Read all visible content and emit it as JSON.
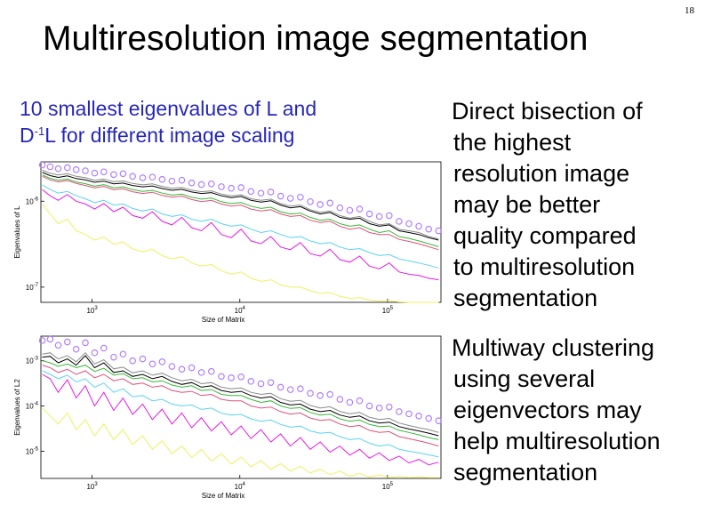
{
  "page_number": "18",
  "title": "Multiresolution image segmentation",
  "subtitle": {
    "line1": "10 smallest eigenvalues of L and",
    "line2_prefix": "D",
    "line2_sup": "-1",
    "line2_suffix": "L for different image scaling"
  },
  "bullets": [
    {
      "lines": [
        "Direct bisection of",
        "the highest",
        "resolution image",
        "may be better",
        "quality  compared",
        "to multiresolution",
        "segmentation"
      ]
    },
    {
      "lines": [
        "Multiway clustering",
        "using several",
        "eigenvectors may",
        "help multiresolution",
        "segmentation"
      ]
    }
  ],
  "colors": {
    "subtitle": "#2727b8",
    "series": [
      "#000000",
      "#e0507a",
      "#38b838",
      "#5ad2f0",
      "#e61ae6",
      "#f0f060",
      "#8a8a8a",
      "#b080ff"
    ]
  },
  "chart_data": [
    {
      "type": "line",
      "title": "",
      "xlabel": "Size of Matrix",
      "ylabel": "Eigenvalues of L",
      "xscale": "log",
      "yscale": "log",
      "xlim": [
        450,
        230000
      ],
      "ylim": [
        5e-08,
        3e-05
      ],
      "xticks": [
        1000,
        10000,
        100000
      ],
      "xtick_labels": [
        [
          "10",
          "3"
        ],
        [
          "10",
          "4"
        ],
        [
          "10",
          "5"
        ]
      ],
      "yticks": [
        5e-06,
        1e-07
      ],
      "ytick_labels": [
        [
          "10",
          "-6"
        ],
        [
          "10",
          "-7"
        ]
      ],
      "x": [
        460,
        520,
        590,
        680,
        780,
        900,
        1040,
        1200,
        1400,
        1620,
        1880,
        2200,
        2560,
        2980,
        3470,
        4050,
        4720,
        5500,
        6420,
        7500,
        8750,
        10200,
        11900,
        13900,
        16200,
        18900,
        22000,
        25700,
        30000,
        35000,
        40800,
        47600,
        55500,
        64700,
        75500,
        88000,
        102600,
        119700,
        139600,
        162800,
        190000,
        221600
      ],
      "series": [
        {
          "values": [
            1.85e-05,
            1.6e-05,
            1.48e-05,
            1.58e-05,
            1.4e-05,
            1.32e-05,
            1.18e-05,
            1.25e-05,
            1.1e-05,
            1.14e-05,
            1.02e-05,
            9.6e-06,
            1e-05,
            8.9e-06,
            8.2e-06,
            8.6e-06,
            7.6e-06,
            7.1e-06,
            7.4e-06,
            6.4e-06,
            5.9e-06,
            6.2e-06,
            5.2e-06,
            4.8e-06,
            5.1e-06,
            4.2e-06,
            3.7e-06,
            3.9e-06,
            3.2e-06,
            2.8e-06,
            3e-06,
            2.4e-06,
            2.2e-06,
            2.3e-06,
            1.8e-06,
            1.6e-06,
            1.7e-06,
            1.3e-06,
            1.2e-06,
            1.1e-06,
            9.5e-07,
            8.5e-07
          ]
        },
        {
          "values": [
            1.55e-05,
            1.32e-05,
            1.2e-05,
            1.28e-05,
            1.12e-05,
            1.02e-05,
            9.2e-06,
            9.8e-06,
            8.4e-06,
            8.8e-06,
            7.7e-06,
            7.1e-06,
            7.5e-06,
            6.5e-06,
            6e-06,
            6.3e-06,
            5.4e-06,
            4.9e-06,
            5.2e-06,
            4.4e-06,
            4e-06,
            4.2e-06,
            3.5e-06,
            3.2e-06,
            3.4e-06,
            2.8e-06,
            2.5e-06,
            2.6e-06,
            2.1e-06,
            1.9e-06,
            2e-06,
            1.6e-06,
            1.4e-06,
            1.5e-06,
            1.2e-06,
            1.1e-06,
            1.1e-06,
            8.8e-07,
            8e-07,
            7.2e-07,
            6.3e-07,
            5.5e-07
          ]
        },
        {
          "values": [
            1.65e-05,
            1.42e-05,
            1.3e-05,
            1.37e-05,
            1.2e-05,
            1.11e-05,
            9.9e-06,
            1.06e-05,
            9.2e-06,
            9.6e-06,
            8.5e-06,
            7.8e-06,
            8.2e-06,
            7.2e-06,
            6.6e-06,
            6.9e-06,
            6e-06,
            5.5e-06,
            5.8e-06,
            4.9e-06,
            4.5e-06,
            4.7e-06,
            4e-06,
            3.6e-06,
            3.8e-06,
            3.1e-06,
            2.8e-06,
            2.9e-06,
            2.4e-06,
            2.1e-06,
            2.2e-06,
            1.8e-06,
            1.6e-06,
            1.7e-06,
            1.4e-06,
            1.2e-06,
            1.3e-06,
            1e-06,
            9.2e-07,
            8.2e-07,
            7.2e-07,
            6.3e-07
          ]
        },
        {
          "values": [
            1.05e-05,
            8.5e-06,
            7.2e-06,
            7.8e-06,
            6.4e-06,
            5.6e-06,
            4.7e-06,
            5.2e-06,
            4.2e-06,
            4.4e-06,
            3.6e-06,
            3.2e-06,
            3.5e-06,
            2.8e-06,
            2.5e-06,
            2.7e-06,
            2.2e-06,
            2e-06,
            2.2e-06,
            1.8e-06,
            1.6e-06,
            1.7e-06,
            1.4e-06,
            1.2e-06,
            1.3e-06,
            1.1e-06,
            9.5e-07,
            1e-06,
            8.2e-07,
            7.2e-07,
            7.6e-07,
            6.2e-07,
            5.5e-07,
            5.8e-07,
            4.8e-07,
            4.2e-07,
            4.4e-07,
            3.6e-07,
            3.3e-07,
            3e-07,
            2.7e-07,
            2.4e-07
          ]
        },
        {
          "values": [
            8.5e-06,
            6.4e-06,
            5.2e-06,
            6.8e-06,
            5e-06,
            4.4e-06,
            3.5e-06,
            4.5e-06,
            3.1e-06,
            3.8e-06,
            2.6e-06,
            2.3e-06,
            3.1e-06,
            2e-06,
            1.7e-06,
            2.4e-06,
            1.5e-06,
            1.3e-06,
            1.9e-06,
            1.1e-06,
            9.5e-07,
            1.4e-06,
            8.2e-07,
            7.2e-07,
            1e-06,
            6.2e-07,
            5.5e-07,
            7.6e-07,
            4.6e-07,
            4.1e-07,
            5.6e-07,
            3.5e-07,
            3.1e-07,
            4.1e-07,
            2.6e-07,
            2.3e-07,
            3e-07,
            2e-07,
            1.8e-07,
            1.7e-07,
            1.5e-07,
            1.4e-07
          ]
        },
        {
          "values": [
            4.5e-06,
            2.8e-06,
            1.8e-06,
            2.2e-06,
            1.3e-06,
            1.1e-06,
            8.5e-07,
            9.8e-07,
            7e-07,
            7.8e-07,
            5.7e-07,
            5e-07,
            5.6e-07,
            4.2e-07,
            3.6e-07,
            4e-07,
            3e-07,
            2.6e-07,
            2.8e-07,
            2.1e-07,
            1.8e-07,
            2e-07,
            1.5e-07,
            1.3e-07,
            1.4e-07,
            1.1e-07,
            1e-07,
            1e-07,
            8.5e-08,
            7.5e-08,
            7.8e-08,
            6.6e-08,
            6e-08,
            6.2e-08,
            5.6e-08,
            5.3e-08,
            5.4e-08,
            5.1e-08,
            5e-08,
            5e-08,
            5e-08,
            5e-08
          ]
        },
        {
          "values": [
            2.05e-05,
            1.78e-05,
            1.65e-05,
            1.75e-05,
            1.55e-05,
            1.46e-05,
            1.3e-05,
            1.38e-05,
            1.21e-05,
            1.26e-05,
            1.12e-05,
            1.05e-05,
            1.1e-05,
            9.8e-06,
            9e-06,
            9.4e-06,
            8.3e-06,
            7.7e-06,
            8e-06,
            6.9e-06,
            6.4e-06,
            6.7e-06,
            5.6e-06,
            5.2e-06,
            5.5e-06,
            4.5e-06,
            4e-06,
            4.2e-06,
            3.4e-06,
            3e-06,
            3.2e-06,
            2.6e-06,
            2.3e-06,
            2.5e-06,
            2e-06,
            1.7e-06,
            1.8e-06,
            1.4e-06,
            1.3e-06,
            1.2e-06,
            1e-06,
            9e-07
          ]
        },
        {
          "marker": "circle",
          "values": [
            2.6e-05,
            2.4e-05,
            2.2e-05,
            2.3e-05,
            2.1e-05,
            2e-05,
            1.8e-05,
            1.9e-05,
            1.68e-05,
            1.75e-05,
            1.55e-05,
            1.45e-05,
            1.5e-05,
            1.35e-05,
            1.25e-05,
            1.3e-05,
            1.15e-05,
            1.07e-05,
            1.1e-05,
            9.7e-06,
            9e-06,
            9.3e-06,
            7.8e-06,
            7.2e-06,
            7.6e-06,
            6.3e-06,
            5.7e-06,
            6e-06,
            4.9e-06,
            4.3e-06,
            4.6e-06,
            3.7e-06,
            3.3e-06,
            3.5e-06,
            2.8e-06,
            2.5e-06,
            2.6e-06,
            2e-06,
            1.8e-06,
            1.6e-06,
            1.4e-06,
            1.3e-06
          ]
        }
      ]
    },
    {
      "type": "line",
      "title": "",
      "xlabel": "Size of Matrix",
      "ylabel": "Eigenvalues of L2",
      "xscale": "log",
      "yscale": "log",
      "xlim": [
        450,
        230000
      ],
      "ylim": [
        2.5e-06,
        0.0035
      ],
      "xticks": [
        1000,
        10000,
        100000
      ],
      "xtick_labels": [
        [
          "10",
          "3"
        ],
        [
          "10",
          "4"
        ],
        [
          "10",
          "5"
        ]
      ],
      "yticks": [
        0.001,
        0.0001,
        1e-05
      ],
      "ytick_labels": [
        [
          "10",
          "-3"
        ],
        [
          "10",
          "-4"
        ],
        [
          "10",
          "-5"
        ]
      ],
      "x": [
        460,
        520,
        590,
        680,
        780,
        900,
        1040,
        1200,
        1400,
        1620,
        1880,
        2200,
        2560,
        2980,
        3470,
        4050,
        4720,
        5500,
        6420,
        7500,
        8750,
        10200,
        11900,
        13900,
        16200,
        18900,
        22000,
        25700,
        30000,
        35000,
        40800,
        47600,
        55500,
        64700,
        75500,
        88000,
        102600,
        119700,
        139600,
        162800,
        190000,
        221600
      ],
      "series": [
        {
          "values": [
            0.0012,
            0.00125,
            0.0009,
            0.0011,
            0.0008,
            0.0013,
            0.0007,
            0.0009,
            0.00055,
            0.0006,
            0.00045,
            0.0005,
            0.0004,
            0.00045,
            0.00035,
            0.0003,
            0.00033,
            0.00026,
            0.00028,
            0.00022,
            0.0002,
            0.00021,
            0.00017,
            0.00015,
            0.00016,
            0.00012,
            0.000105,
            0.00011,
            8.5e-05,
            7.5e-05,
            8e-05,
            6.3e-05,
            5.6e-05,
            6e-05,
            4.7e-05,
            4.2e-05,
            4.4e-05,
            3.5e-05,
            3.1e-05,
            2.8e-05,
            2.5e-05,
            2.2e-05
          ]
        },
        {
          "values": [
            0.0008,
            0.0007,
            0.00055,
            0.00065,
            0.0005,
            0.0006,
            0.00042,
            0.0005,
            0.00036,
            0.0004,
            0.0003,
            0.00032,
            0.00026,
            0.00028,
            0.00022,
            0.0002,
            0.00021,
            0.00017,
            0.00018,
            0.00014,
            0.00013,
            0.00013,
            0.0001,
            9e-05,
            9.5e-05,
            7.5e-05,
            6.6e-05,
            7e-05,
            5.4e-05,
            4.8e-05,
            5e-05,
            4e-05,
            3.5e-05,
            3.7e-05,
            2.9e-05,
            2.6e-05,
            2.7e-05,
            2.1e-05,
            1.9e-05,
            1.7e-05,
            1.5e-05,
            1.3e-05
          ]
        },
        {
          "values": [
            0.001,
            0.0009,
            0.00075,
            0.00085,
            0.0007,
            0.0008,
            0.00058,
            0.00068,
            0.00048,
            0.00052,
            0.0004,
            0.00042,
            0.00034,
            0.00036,
            0.00029,
            0.00026,
            0.00028,
            0.00022,
            0.00023,
            0.00018,
            0.00017,
            0.00017,
            0.00014,
            0.00012,
            0.00013,
            0.0001,
            8.8e-05,
            9.2e-05,
            7.2e-05,
            6.3e-05,
            6.6e-05,
            5.2e-05,
            4.6e-05,
            4.9e-05,
            3.9e-05,
            3.5e-05,
            3.6e-05,
            2.9e-05,
            2.6e-05,
            2.3e-05,
            2e-05,
            1.8e-05
          ]
        },
        {
          "values": [
            0.0006,
            0.0005,
            0.0004,
            0.00048,
            0.00034,
            0.0004,
            0.00026,
            0.00032,
            0.0002,
            0.00024,
            0.00016,
            0.00017,
            0.00013,
            0.00014,
            0.00011,
            0.0001,
            0.000105,
            8.4e-05,
            9e-05,
            6.9e-05,
            6.3e-05,
            6.5e-05,
            5.2e-05,
            4.6e-05,
            4.9e-05,
            3.9e-05,
            3.4e-05,
            3.6e-05,
            2.8e-05,
            2.5e-05,
            2.6e-05,
            2.1e-05,
            1.8e-05,
            1.9e-05,
            1.5e-05,
            1.3e-05,
            1.4e-05,
            1.1e-05,
            1e-05,
            9.2e-06,
            8.3e-06,
            7.5e-06
          ]
        },
        {
          "values": [
            0.0005,
            0.0004,
            0.0002,
            0.00038,
            0.00015,
            0.00028,
            0.0001,
            0.0002,
            8e-05,
            0.00015,
            6.5e-05,
            0.00011,
            5e-05,
            8.5e-05,
            4e-05,
            7e-05,
            3.3e-05,
            5.5e-05,
            2.8e-05,
            4.5e-05,
            2.3e-05,
            3.6e-05,
            1.9e-05,
            3e-05,
            1.6e-05,
            2.4e-05,
            1.3e-05,
            2e-05,
            1.1e-05,
            1.6e-05,
            9.5e-06,
            1.3e-05,
            8.2e-06,
            1.1e-05,
            7e-06,
            9.2e-06,
            6.2e-06,
            7.8e-06,
            5.5e-06,
            6.6e-06,
            5e-06,
            5.7e-06
          ]
        },
        {
          "values": [
            9e-05,
            6e-05,
            4e-05,
            7e-05,
            3e-05,
            5e-05,
            2.2e-05,
            4e-05,
            1.8e-05,
            3e-05,
            1.4e-05,
            2.2e-05,
            1.1e-05,
            1.7e-05,
            8.8e-06,
            1.3e-05,
            7.2e-06,
            1.1e-05,
            6e-06,
            8.8e-06,
            5.2e-06,
            7.4e-06,
            4.5e-06,
            6.2e-06,
            4e-06,
            5.3e-06,
            3.6e-06,
            4.6e-06,
            3.3e-06,
            4e-06,
            3e-06,
            3.6e-06,
            2.8e-06,
            3.2e-06,
            2.7e-06,
            3e-06,
            2.6e-06,
            2.8e-06,
            2.6e-06,
            2.7e-06,
            2.6e-06,
            2.6e-06
          ]
        },
        {
          "values": [
            0.0014,
            0.0015,
            0.0011,
            0.0013,
            0.00095,
            0.0015,
            0.00085,
            0.00105,
            0.00066,
            0.00072,
            0.00054,
            0.0006,
            0.00048,
            0.00053,
            0.00042,
            0.00036,
            0.00039,
            0.00031,
            0.00033,
            0.00026,
            0.00024,
            0.00025,
            0.0002,
            0.00018,
            0.00019,
            0.000145,
            0.000127,
            0.000133,
            0.000103,
            9e-05,
            9.6e-05,
            7.6e-05,
            6.7e-05,
            7.2e-05,
            5.6e-05,
            5e-05,
            5.3e-05,
            4.2e-05,
            3.7e-05,
            3.3e-05,
            3e-05,
            2.6e-05
          ]
        },
        {
          "marker": "circle",
          "values": [
            0.0028,
            0.003,
            0.0022,
            0.0026,
            0.0018,
            0.0025,
            0.0015,
            0.0019,
            0.0012,
            0.0014,
            0.001,
            0.0011,
            0.00085,
            0.00095,
            0.00075,
            0.00065,
            0.0007,
            0.00055,
            0.00058,
            0.00045,
            0.00042,
            0.00044,
            0.00035,
            0.00031,
            0.00033,
            0.00026,
            0.00023,
            0.00024,
            0.00019,
            0.00017,
            0.00018,
            0.00014,
            0.00012,
            0.00013,
            0.0001,
            9e-05,
            9.5e-05,
            7.5e-05,
            6.7e-05,
            6e-05,
            5.3e-05,
            4.7e-05
          ]
        }
      ]
    }
  ]
}
